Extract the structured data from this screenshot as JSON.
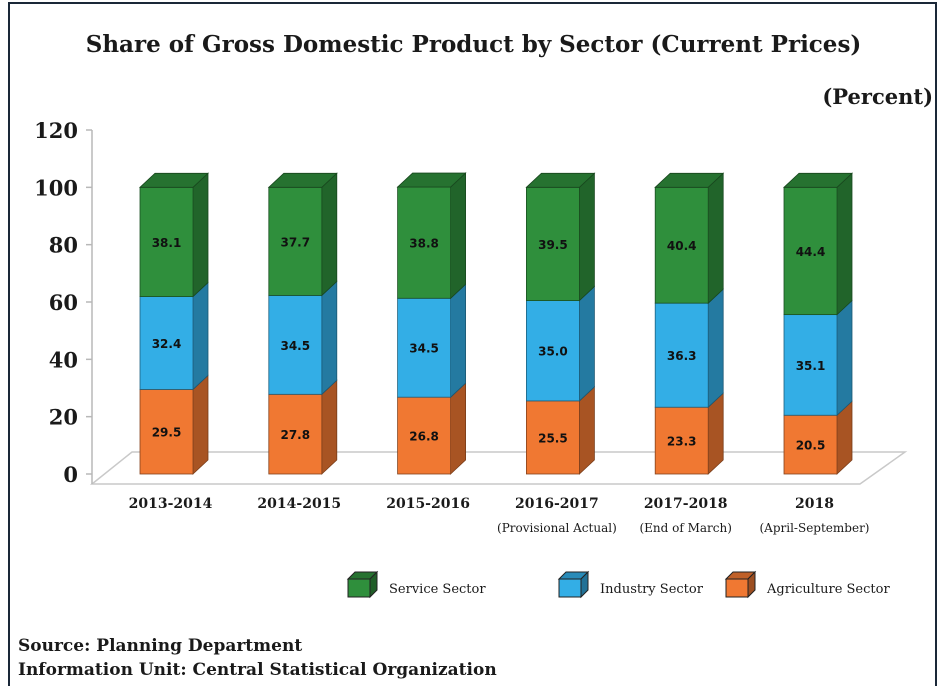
{
  "chart_data": {
    "type": "bar",
    "stacked": true,
    "three_d": true,
    "title": "Share of Gross Domestic Product by Sector (Current Prices)",
    "unit_label": "(Percent)",
    "categories": [
      "2013-2014",
      "2014-2015",
      "2015-2016",
      "2016-2017",
      "2017-2018",
      "2018"
    ],
    "category_notes": [
      "",
      "",
      "",
      "(Provisional Actual)",
      "(End of March)",
      "(April-September)"
    ],
    "series": [
      {
        "name": "Agriculture Sector",
        "color": "#f07832",
        "values": [
          29.5,
          27.8,
          26.8,
          25.5,
          23.3,
          20.5
        ]
      },
      {
        "name": "Industry Sector",
        "color": "#33aee6",
        "values": [
          32.4,
          34.5,
          34.5,
          35.0,
          36.3,
          35.1
        ]
      },
      {
        "name": "Service Sector",
        "color": "#2f8f3c",
        "values": [
          38.1,
          37.7,
          38.8,
          39.5,
          40.4,
          44.4
        ]
      }
    ],
    "legend_order": [
      "Service Sector",
      "Industry Sector",
      "Agriculture Sector"
    ],
    "ylim": [
      0,
      120
    ],
    "yticks": [
      0,
      20,
      40,
      60,
      80,
      100,
      120
    ],
    "grid": false,
    "legend_position": "bottom-right"
  },
  "footer": {
    "source": "Source: Planning Department",
    "info": "Information Unit: Central Statistical Organization"
  }
}
